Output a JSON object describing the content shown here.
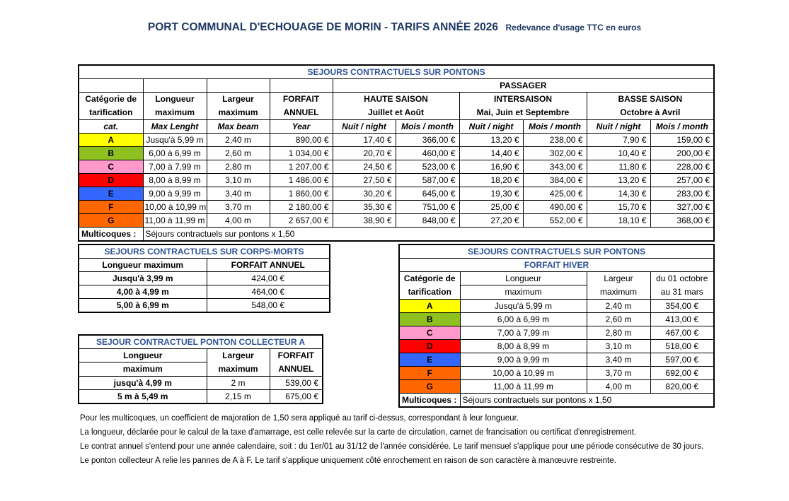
{
  "page_title": {
    "main": "PORT COMMUNAL D'ECHOUAGE DE MORIN - TARIFS ANNÉE 2026",
    "suffix": "Redevance d'usage TTC en euros"
  },
  "colors": {
    "title_navy": "#1F3864",
    "table_title_blue": "#2F5496",
    "categories": {
      "A": "#FFFF00",
      "B": "#8EC020",
      "C": "#FF99CC",
      "D": "#FF0000",
      "E": "#3366FF",
      "F": "#FF6600",
      "G": "#FF6600"
    }
  },
  "pontons_table": {
    "title": "SEJOURS CONTRACTUELS SUR PONTONS",
    "passager_header": "PASSAGER",
    "headers": {
      "cat_l1": "Catégorie de",
      "cat_l2": "tarification",
      "cat_en": "cat.",
      "length_l1": "Longueur",
      "length_l2": "maximum",
      "length_en": "Max Lenght",
      "beam_l1": "Largeur",
      "beam_l2": "maximum",
      "beam_en": "Max beam",
      "forfait_l1": "FORFAIT",
      "forfait_l2": "ANNUEL",
      "forfait_en": "Year",
      "haute_l1": "HAUTE SAISON",
      "haute_l2": "Juillet et Août",
      "inter_l1": "INTERSAISON",
      "inter_l2": "Mai, Juin et Septembre",
      "basse_l1": "BASSE SAISON",
      "basse_l2": "Octobre à Avril",
      "nuit": "Nuit / night",
      "mois": "Mois / month"
    },
    "rows": [
      [
        "A",
        "Jusqu'à 5,99 m",
        "2,40 m",
        "890,00 €",
        "17,40 €",
        "366,00 €",
        "13,20 €",
        "238,00 €",
        "7,90 €",
        "159,00 €"
      ],
      [
        "B",
        "6,00 à 6,99 m",
        "2,60 m",
        "1 034,00 €",
        "20,70 €",
        "460,00 €",
        "14,40 €",
        "302,00 €",
        "10,40 €",
        "200,00 €"
      ],
      [
        "C",
        "7,00 à 7,99 m",
        "2,80 m",
        "1 207,00 €",
        "24,50 €",
        "523,00 €",
        "16,90 €",
        "343,00 €",
        "11,80 €",
        "228,00 €"
      ],
      [
        "D",
        "8,00 à 8,99 m",
        "3,10 m",
        "1 486,00 €",
        "27,50 €",
        "587,00 €",
        "18,20 €",
        "384,00 €",
        "13,20 €",
        "257,00 €"
      ],
      [
        "E",
        "9,00 à 9,99 m",
        "3,40 m",
        "1 860,00 €",
        "30,20 €",
        "645,00 €",
        "19,30 €",
        "425,00 €",
        "14,30 €",
        "283,00 €"
      ],
      [
        "F",
        "10,00 à 10,99 m",
        "3,70 m",
        "2 180,00 €",
        "35,30 €",
        "751,00 €",
        "25,00 €",
        "490,00 €",
        "15,70 €",
        "327,00 €"
      ],
      [
        "G",
        "11,00 à 11,99 m",
        "4,00 m",
        "2 657,00 €",
        "38,90 €",
        "848,00 €",
        "27,20 €",
        "552,00 €",
        "18,10 €",
        "368,00 €"
      ]
    ],
    "multicoques_label": "Multicoques :",
    "multicoques_text": "Séjours contractuels sur pontons x 1,50"
  },
  "corps_morts_table": {
    "title": "SEJOURS CONTRACTUELS SUR CORPS-MORTS",
    "headers": {
      "length": "Longueur maximum",
      "forfait": "FORFAIT ANNUEL"
    },
    "rows": [
      [
        "Jusqu'à 3,99 m",
        "424,00 €"
      ],
      [
        "4,00 à 4,99 m",
        "464,00 €"
      ],
      [
        "5,00 à 6,99 m",
        "548,00 €"
      ]
    ]
  },
  "collecteur_table": {
    "title": "SEJOUR CONTRACTUEL PONTON COLLECTEUR A",
    "headers": {
      "length_l1": "Longueur",
      "length_l2": "maximum",
      "beam_l1": "Largeur",
      "beam_l2": "maximum",
      "forfait_l1": "FORFAIT",
      "forfait_l2": "ANNUEL"
    },
    "rows": [
      [
        "jusqu'à 4,99 m",
        "2 m",
        "539,00 €"
      ],
      [
        "5 m à 5,49 m",
        "2,15 m",
        "675,00 €"
      ]
    ]
  },
  "hiver_table": {
    "title": "SEJOURS CONTRACTUELS SUR PONTONS",
    "subtitle": "FORFAIT HIVER",
    "headers": {
      "cat_l1": "Catégorie de",
      "cat_l2": "tarification",
      "length_l1": "Longueur",
      "length_l2": "maximum",
      "beam_l1": "Largeur",
      "beam_l2": "maximum",
      "period_l1": "du 01 octobre",
      "period_l2": "au 31 mars"
    },
    "rows": [
      [
        "A",
        "Jusqu'à 5,99 m",
        "2,40 m",
        "354,00 €"
      ],
      [
        "B",
        "6,00 à 6,99 m",
        "2,60 m",
        "413,00 €"
      ],
      [
        "C",
        "7,00 à 7,99 m",
        "2,80 m",
        "467,00 €"
      ],
      [
        "D",
        "8,00 à 8,99 m",
        "3,10 m",
        "518,00 €"
      ],
      [
        "E",
        "9,00 à 9,99 m",
        "3,40 m",
        "597,00 €"
      ],
      [
        "F",
        "10,00 à 10,99 m",
        "3,70 m",
        "692,00 €"
      ],
      [
        "G",
        "11,00 à 11,99 m",
        "4,00 m",
        "820,00 €"
      ]
    ],
    "multicoques_label": "Multicoques :",
    "multicoques_text": "Séjours contractuels sur pontons x 1,50"
  },
  "notes": [
    "Pour les multicoques, un coefficient de majoration de 1,50 sera appliqué au tarif ci-dessus, correspondant à leur longueur.",
    "La longueur, déclarée pour le calcul de la taxe d'amarrage, est celle relevée sur la carte de circulation, carnet de francisation ou certificat d'enregistrement.",
    "Le contrat annuel s'entend pour une année calendaire, soit : du 1er/01 au 31/12 de l'année considérée. Le tarif mensuel s'applique pour une période consécutive de 30 jours.",
    "Le ponton collecteur A relie les pannes de A à F. Le tarif s'applique uniquement côté enrochement en raison de son caractère à manœuvre restreinte."
  ]
}
